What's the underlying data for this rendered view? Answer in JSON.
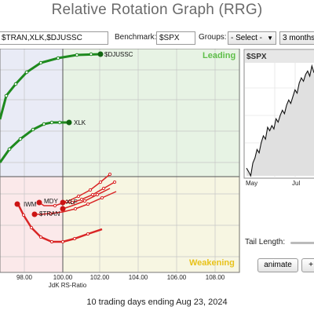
{
  "title": "Relative Rotation Graph (RRG)",
  "controls": {
    "symbols_value": "$TRAN,XLK,$DJUSSC",
    "benchmark_label": "Benchmark:",
    "benchmark_value": "$SPX",
    "groups_label": "Groups:",
    "groups_value": "- Select -",
    "period_value": "3 months"
  },
  "rrg": {
    "quadrants": {
      "leading": "Leading",
      "weakening": "Weakening"
    },
    "colors": {
      "leading_bg": "#e7f3e4",
      "improving_bg": "#e9ebf6",
      "lagging_bg": "#fbe9ea",
      "weakening_bg": "#f7f6e2",
      "green": "#1e8a1e",
      "red": "#d92626",
      "leading_text": "#5fbf4a",
      "weakening_text": "#e8c21a"
    },
    "x_ticks": [
      "98.00",
      "100.00",
      "102.00",
      "104.00",
      "106.00",
      "108.00"
    ],
    "x_label": "JdK RS-Ratio",
    "points": [
      {
        "label": "$DJUSSC"
      },
      {
        "label": "XLK"
      },
      {
        "label": "IWM"
      },
      {
        "label": "MDY"
      },
      {
        "label": "XLF"
      },
      {
        "label": "$TRAN"
      }
    ]
  },
  "chart_data": {
    "type": "line",
    "title": "$SPX",
    "x_ticks": [
      "May",
      "Jul"
    ],
    "series": [
      {
        "values": [
          5060,
          5040,
          5015,
          5090,
          5120,
          5170,
          5150,
          5210,
          5250,
          5230,
          5300,
          5280,
          5310,
          5290,
          5350,
          5330,
          5370,
          5400,
          5380,
          5430,
          5460,
          5440,
          5480,
          5520,
          5500,
          5560,
          5590,
          5570,
          5610,
          5630,
          5600,
          5660,
          5620
        ]
      }
    ]
  },
  "tail_length_label": "Tail Length:",
  "animate_label": "animate",
  "extra_button_label": "+",
  "footer": "10 trading days ending Aug 23, 2024"
}
